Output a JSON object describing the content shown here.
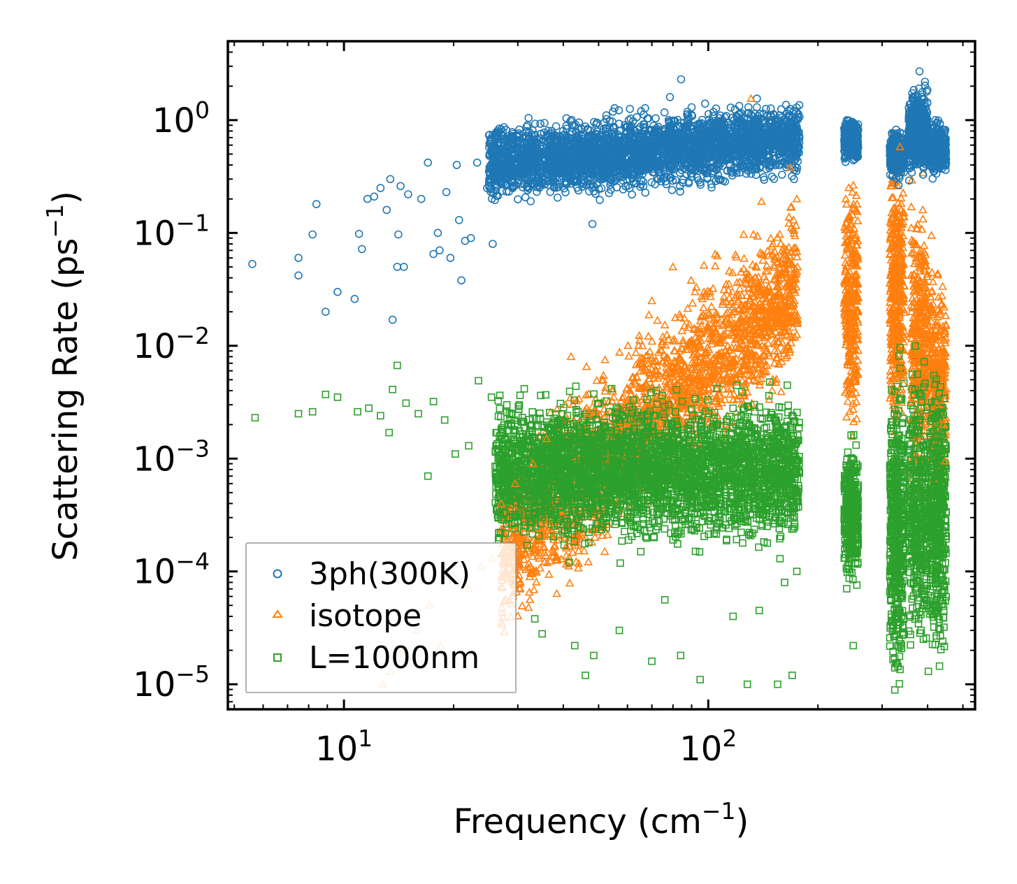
{
  "chart_data": {
    "type": "scatter",
    "title": "",
    "xlabel": "Frequency (cm",
    "xlabel_sup": "−1",
    "xlabel_end": ")",
    "ylabel": "Scattering Rate (ps",
    "ylabel_sup": "−1",
    "ylabel_end": ")",
    "xscale": "log",
    "yscale": "log",
    "xlim": [
      4.8,
      540
    ],
    "ylim": [
      6e-06,
      5.0
    ],
    "xticks": [
      {
        "value": 10,
        "base": "10",
        "exp": "1"
      },
      {
        "value": 100,
        "base": "10",
        "exp": "2"
      }
    ],
    "yticks": [
      {
        "value": 1,
        "base": "10",
        "exp": "0"
      },
      {
        "value": 0.1,
        "base": "10",
        "exp": "−1"
      },
      {
        "value": 0.01,
        "base": "10",
        "exp": "−2"
      },
      {
        "value": 0.001,
        "base": "10",
        "exp": "−3"
      },
      {
        "value": 0.0001,
        "base": "10",
        "exp": "−4"
      },
      {
        "value": 1e-05,
        "base": "10",
        "exp": "−5"
      }
    ],
    "legend_position": "bottom-left",
    "series": [
      {
        "name": "3ph(300K)",
        "marker": "circle",
        "color": "#1f77b4",
        "sample_points": [
          [
            5.6,
            0.053
          ],
          [
            7.5,
            0.06
          ],
          [
            7.5,
            0.042
          ],
          [
            8.2,
            0.097
          ],
          [
            8.4,
            0.18
          ],
          [
            8.9,
            0.02
          ],
          [
            9.6,
            0.03
          ],
          [
            10.7,
            0.026
          ],
          [
            11.0,
            0.098
          ],
          [
            11.2,
            0.072
          ],
          [
            11.6,
            0.2
          ],
          [
            12.1,
            0.21
          ],
          [
            12.6,
            0.25
          ],
          [
            13.1,
            0.16
          ],
          [
            13.4,
            0.3
          ],
          [
            13.6,
            0.017
          ],
          [
            14.0,
            0.05
          ],
          [
            14.1,
            0.097
          ],
          [
            14.3,
            0.26
          ],
          [
            14.6,
            0.05
          ],
          [
            15.0,
            0.22
          ],
          [
            16.3,
            0.2
          ],
          [
            17.0,
            0.42
          ],
          [
            17.6,
            0.065
          ],
          [
            18.1,
            0.1
          ],
          [
            18.3,
            0.07
          ],
          [
            19.1,
            0.23
          ],
          [
            19.6,
            0.06
          ],
          [
            20.4,
            0.4
          ],
          [
            20.7,
            0.13
          ],
          [
            21.0,
            0.038
          ],
          [
            21.5,
            0.085
          ],
          [
            22.3,
            0.09
          ],
          [
            23.2,
            0.42
          ],
          [
            24.7,
            0.25
          ],
          [
            25.6,
            0.08
          ],
          [
            26.8,
            0.55
          ],
          [
            28.5,
            0.35
          ],
          [
            30.1,
            0.5
          ],
          [
            33.0,
            0.62
          ],
          [
            36.5,
            0.38
          ],
          [
            40.2,
            0.45
          ],
          [
            45.0,
            0.28
          ],
          [
            48.1,
            0.12
          ],
          [
            52.3,
            0.85
          ],
          [
            56.0,
            0.5
          ],
          [
            60.5,
            1.0
          ],
          [
            65.4,
            1.2
          ],
          [
            71.0,
            0.6
          ],
          [
            78.5,
            1.6
          ],
          [
            84.2,
            2.3
          ],
          [
            90.0,
            1.3
          ],
          [
            98.0,
            1.4
          ],
          [
            106,
            0.8
          ],
          [
            113,
            0.45
          ],
          [
            124,
            0.95
          ],
          [
            136,
            1.55
          ],
          [
            148,
            0.4
          ],
          [
            158,
            0.6
          ],
          [
            167,
            1.2
          ],
          [
            172,
            0.3
          ],
          [
            240,
            1.0
          ],
          [
            250,
            0.6
          ],
          [
            320,
            0.6
          ],
          [
            334,
            0.5
          ],
          [
            365,
            1.5
          ],
          [
            380,
            2.7
          ],
          [
            394,
            0.5
          ],
          [
            425,
            0.95
          ],
          [
            440,
            0.6
          ]
        ]
      },
      {
        "name": "isotope",
        "marker": "triangle",
        "color": "#ff7f0e",
        "sample_points": [
          [
            12.8,
            1e-05
          ],
          [
            13.4,
            1.3e-05
          ],
          [
            14.5,
            2e-05
          ],
          [
            15.8,
            3e-05
          ],
          [
            17.2,
            5e-05
          ],
          [
            18.4,
            2.2e-05
          ],
          [
            20.0,
            9e-05
          ],
          [
            22.0,
            7e-05
          ],
          [
            23.8,
            0.00011
          ],
          [
            25.5,
            0.00013
          ],
          [
            27.0,
            0.0004
          ],
          [
            29.5,
            0.0006
          ],
          [
            33.0,
            0.0009
          ],
          [
            36.0,
            0.0015
          ],
          [
            40.5,
            0.003
          ],
          [
            42.0,
            0.008
          ],
          [
            47.0,
            0.0025
          ],
          [
            51.5,
            0.005
          ],
          [
            55.0,
            0.0035
          ],
          [
            61.0,
            0.004
          ],
          [
            66.0,
            0.01
          ],
          [
            70.0,
            0.025
          ],
          [
            75.0,
            0.012
          ],
          [
            80.0,
            0.05
          ],
          [
            86.0,
            0.015
          ],
          [
            92.0,
            0.03
          ],
          [
            101,
            0.03
          ],
          [
            112,
            0.035
          ],
          [
            123,
            0.045
          ],
          [
            131,
            1.55
          ],
          [
            140,
            0.19
          ],
          [
            150,
            0.065
          ],
          [
            160,
            0.06
          ],
          [
            168,
            0.38
          ],
          [
            175,
            0.2
          ],
          [
            243,
            0.14
          ],
          [
            250,
            0.005
          ],
          [
            256,
            0.18
          ],
          [
            318,
            0.26
          ],
          [
            329,
            0.05
          ],
          [
            336,
            0.58
          ],
          [
            344,
            0.006
          ],
          [
            388,
            0.16
          ],
          [
            410,
            0.095
          ],
          [
            425,
            0.003
          ],
          [
            442,
            0.002
          ],
          [
            447,
            0.00095
          ]
        ]
      },
      {
        "name": "L=1000nm",
        "marker": "square",
        "color": "#2ca02c",
        "sample_points": [
          [
            5.7,
            0.0023
          ],
          [
            7.5,
            0.0025
          ],
          [
            8.2,
            0.0026
          ],
          [
            8.9,
            0.0037
          ],
          [
            9.6,
            0.0035
          ],
          [
            10.9,
            0.0026
          ],
          [
            11.7,
            0.0028
          ],
          [
            12.6,
            0.0024
          ],
          [
            13.3,
            0.0017
          ],
          [
            13.6,
            0.0041
          ],
          [
            14.0,
            0.0067
          ],
          [
            14.8,
            0.0031
          ],
          [
            16.0,
            0.0025
          ],
          [
            17.0,
            0.0007
          ],
          [
            17.6,
            0.0032
          ],
          [
            18.9,
            0.0022
          ],
          [
            20.2,
            0.0011
          ],
          [
            22.0,
            0.0013
          ],
          [
            23.4,
            0.0049
          ],
          [
            25.4,
            0.0035
          ],
          [
            26.5,
            0.0012
          ],
          [
            29.0,
            0.001
          ],
          [
            32.0,
            0.00055
          ],
          [
            33.4,
            3.8e-05
          ],
          [
            35.0,
            2.8e-05
          ],
          [
            38.0,
            0.0021
          ],
          [
            41.5,
            0.00012
          ],
          [
            43.0,
            2.2e-05
          ],
          [
            46.0,
            1.2e-05
          ],
          [
            48.5,
            1.8e-05
          ],
          [
            52.5,
            0.0003
          ],
          [
            57.0,
            3e-05
          ],
          [
            62.0,
            0.0027
          ],
          [
            70.0,
            1.6e-05
          ],
          [
            76.0,
            5.6e-05
          ],
          [
            84.0,
            1.8e-05
          ],
          [
            95.0,
            1.1e-05
          ],
          [
            105,
            0.002
          ],
          [
            117,
            4e-05
          ],
          [
            128,
            1e-05
          ],
          [
            138,
            4.5e-05
          ],
          [
            145,
            0.0016
          ],
          [
            155,
            1e-05
          ],
          [
            162,
            8e-05
          ],
          [
            170,
            1.2e-05
          ],
          [
            175,
            0.0001
          ],
          [
            238,
            0.00024
          ],
          [
            244,
            0.00085
          ],
          [
            250,
            2.2e-05
          ],
          [
            325,
            1.4e-05
          ],
          [
            340,
            0.0013
          ],
          [
            368,
            0.0017
          ],
          [
            384,
            3e-05
          ],
          [
            402,
            1.3e-05
          ],
          [
            412,
            0.00015
          ],
          [
            428,
            0.00074
          ],
          [
            440,
            2.4e-05
          ]
        ]
      }
    ]
  }
}
